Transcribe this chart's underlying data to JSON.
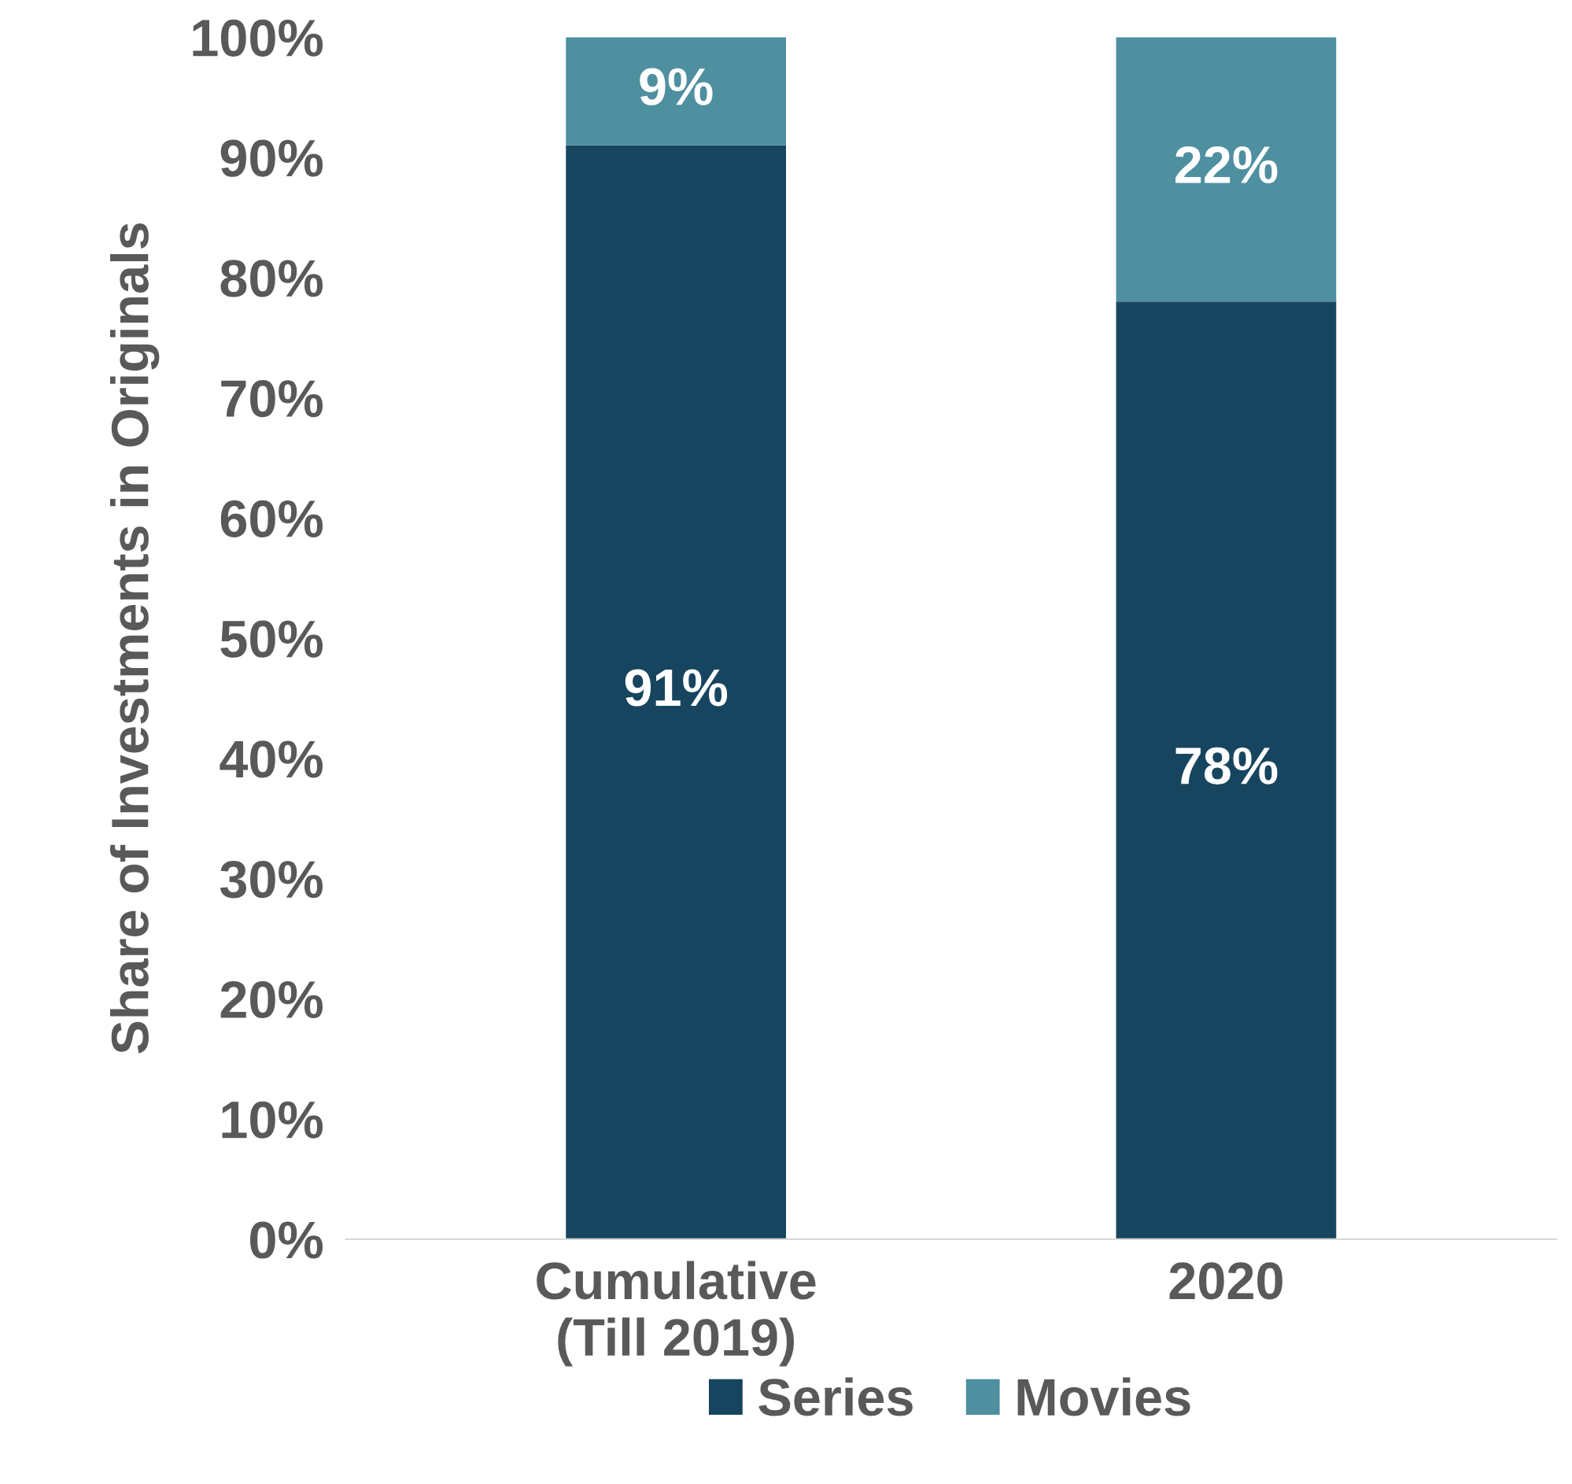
{
  "chart_data": {
    "type": "bar",
    "stacked": true,
    "ylabel": "Share of Investments in Originals",
    "categories": [
      "Cumulative\n(Till 2019)",
      "2020"
    ],
    "series": [
      {
        "name": "Series",
        "color": "#17455f",
        "values": [
          91,
          78
        ],
        "value_labels": [
          "91%",
          "78%"
        ]
      },
      {
        "name": "Movies",
        "color": "#4e8fa0",
        "values": [
          9,
          22
        ],
        "value_labels": [
          "9%",
          "22%"
        ]
      }
    ],
    "ylim": [
      0,
      100
    ],
    "yticks": [
      {
        "value": 0,
        "label": "0%"
      },
      {
        "value": 10,
        "label": "10%"
      },
      {
        "value": 20,
        "label": "20%"
      },
      {
        "value": 30,
        "label": "30%"
      },
      {
        "value": 40,
        "label": "40%"
      },
      {
        "value": 50,
        "label": "50%"
      },
      {
        "value": 60,
        "label": "60%"
      },
      {
        "value": 70,
        "label": "70%"
      },
      {
        "value": 80,
        "label": "80%"
      },
      {
        "value": 90,
        "label": "90%"
      },
      {
        "value": 100,
        "label": "100%"
      }
    ],
    "grid": false,
    "legend": "bottom"
  }
}
